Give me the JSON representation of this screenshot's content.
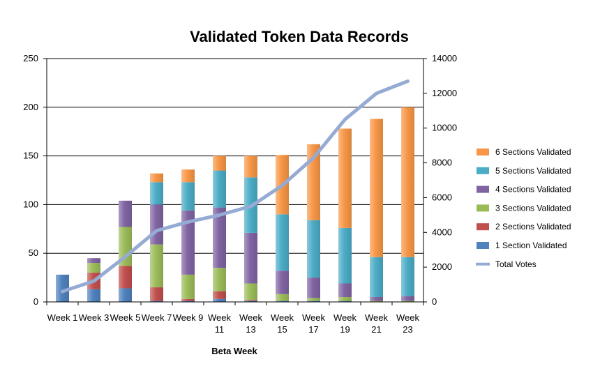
{
  "chart_data": {
    "type": "bar",
    "stacked": true,
    "title": "Validated Token Data Records",
    "xlabel": "Beta Week",
    "ylabel": "",
    "y2label": "",
    "ylim": [
      0,
      250
    ],
    "yticks": [
      0,
      50,
      100,
      150,
      200,
      250
    ],
    "y2lim": [
      0,
      14000
    ],
    "y2ticks": [
      0,
      2000,
      4000,
      6000,
      8000,
      10000,
      12000,
      14000
    ],
    "grid": true,
    "legend_position": "right",
    "categories": [
      [
        "Week 1"
      ],
      [
        "Week 3"
      ],
      [
        "Week 5"
      ],
      [
        "Week 7"
      ],
      [
        "Week 9"
      ],
      [
        "Week",
        "11"
      ],
      [
        "Week",
        "13"
      ],
      [
        "Week",
        "15"
      ],
      [
        "Week",
        "17"
      ],
      [
        "Week",
        "19"
      ],
      [
        "Week",
        "21"
      ],
      [
        "Week",
        "23"
      ]
    ],
    "series": [
      {
        "name": "1 Section Validated",
        "color": "#4f81bd",
        "values": [
          28,
          13,
          14,
          1,
          1,
          3,
          1,
          1,
          1,
          1,
          0,
          0
        ]
      },
      {
        "name": "2 Sections Validated",
        "color": "#c0504d",
        "values": [
          0,
          17,
          23,
          14,
          2,
          8,
          1,
          0,
          0,
          0,
          0,
          0
        ]
      },
      {
        "name": "3 Sections Validated",
        "color": "#9bbb59",
        "values": [
          0,
          10,
          40,
          44,
          25,
          24,
          17,
          7,
          3,
          4,
          1,
          1
        ]
      },
      {
        "name": "4 Sections Validated",
        "color": "#8064a2",
        "values": [
          0,
          5,
          27,
          41,
          66,
          62,
          52,
          24,
          21,
          14,
          4,
          5
        ]
      },
      {
        "name": "5 Sections Validated",
        "color": "#4bacc6",
        "values": [
          0,
          0,
          0,
          23,
          29,
          38,
          57,
          58,
          59,
          57,
          41,
          40
        ]
      },
      {
        "name": "6 Sections Validated",
        "color": "#f79646",
        "values": [
          0,
          0,
          0,
          9,
          13,
          15,
          22,
          61,
          78,
          102,
          142,
          154
        ]
      }
    ],
    "line_series": {
      "name": "Total Votes",
      "color": "#95abd3",
      "axis": "secondary",
      "values": [
        600,
        1200,
        2600,
        4100,
        4600,
        5000,
        5500,
        6700,
        8300,
        10500,
        12000,
        12700
      ]
    }
  }
}
